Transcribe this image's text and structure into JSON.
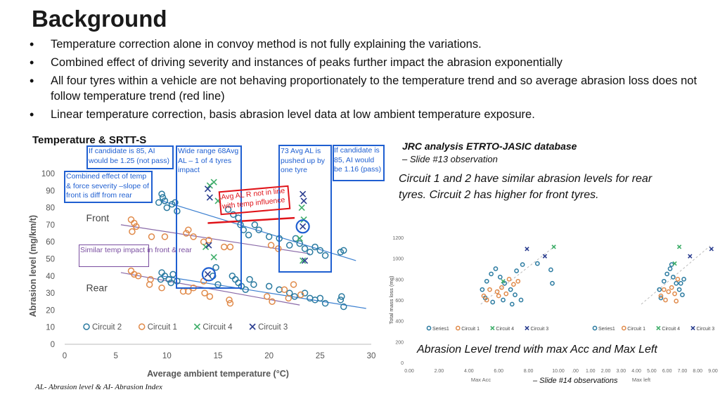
{
  "slide": {
    "title": "Background",
    "bullets": [
      "Temperature correction alone in convoy method is not fully explaining the variations.",
      "Combined effect of driving severity and instances of peaks further impact the abrasion exponentially",
      "All four tyres within a vehicle are not behaving proportionately to the temperature trend  and so average abrasion loss does not follow temperature trend (red line)",
      "Linear temperature correction, basis abrasion level data at low ambient temperature exposure."
    ],
    "section_title": "Temperature & SRTT-S",
    "jrc_title": "JRC analysis ETRTO-JASIC database",
    "jrc_sub": "– Slide #13 observation",
    "circuit_note": "Circuit 1 and 2 have similar abrasion levels for rear tyres. Circuit 2 has higher for front tyres.",
    "abrasion_trend": "Abrasion Level trend with max Acc and Max Left",
    "slide14": "– Slide #14 observations",
    "footnote": "AL- Abrasion level & AI- Abrasion Index"
  },
  "annotations": {
    "ai85_left": "If candidate is 85, AI would be 1.25 (not pass)",
    "combined": "Combined effect of temp & force severity –slope of front is diff from rear",
    "wide_range": "Wide range 68Avg AL – 1 of 4 tyres impact",
    "avg_al_73": "73 Avg AL is pushed up by one tyre",
    "ai85_right": "If candidate is 85, AI would be 1.16 (pass)",
    "avg_al_not_in_line": "Avg AL R not in line with temp influence",
    "similar_temp": "Similar temp impact in front & rear",
    "front_label": "Front",
    "rear_label": "Rear"
  },
  "colors": {
    "accent_blue": "#1f5fd1",
    "red": "#e0141a",
    "circuit2": "#2a7aa0",
    "circuit1": "#e08a4a",
    "circuit4": "#3fae6a",
    "circuit3": "#2a3d8f",
    "purple": "#7a4ea0"
  },
  "chart_data": [
    {
      "type": "scatter",
      "title": "",
      "xlabel": "Average ambient temperature (°C)",
      "ylabel": "Abrasion level (mg/km/t)",
      "xlim": [
        0,
        30
      ],
      "ylim": [
        0,
        100
      ],
      "xticks": [
        0,
        5,
        10,
        15,
        20,
        25,
        30
      ],
      "yticks": [
        0,
        10,
        20,
        30,
        40,
        50,
        60,
        70,
        80,
        90,
        100
      ],
      "grid": false,
      "legend": "bottom",
      "series": [
        {
          "name": "Circuit 2",
          "marker": "circle",
          "points": [
            [
              9.5,
              88
            ],
            [
              9.8,
              84
            ],
            [
              10,
              80
            ],
            [
              10.5,
              82
            ],
            [
              9.2,
              83
            ],
            [
              9.6,
              86
            ],
            [
              10.8,
              83
            ],
            [
              11,
              78
            ],
            [
              16,
              79
            ],
            [
              16.5,
              76
            ],
            [
              17,
              74
            ],
            [
              17.2,
              70
            ],
            [
              17.5,
              67
            ],
            [
              18,
              64
            ],
            [
              18.6,
              70
            ],
            [
              19,
              67
            ],
            [
              20,
              63
            ],
            [
              21,
              62
            ],
            [
              22,
              58
            ],
            [
              22.6,
              62
            ],
            [
              23,
              59
            ],
            [
              23.5,
              56
            ],
            [
              24,
              54
            ],
            [
              24.5,
              57
            ],
            [
              25,
              55
            ],
            [
              25.5,
              52
            ],
            [
              27,
              54
            ],
            [
              27.3,
              55
            ],
            [
              9.5,
              42
            ],
            [
              9.8,
              40
            ],
            [
              10.2,
              38
            ],
            [
              10.6,
              41
            ],
            [
              11,
              37
            ],
            [
              9.4,
              38
            ],
            [
              10.4,
              36
            ],
            [
              16.4,
              40
            ],
            [
              16.7,
              38
            ],
            [
              17,
              36
            ],
            [
              17.3,
              34
            ],
            [
              17.7,
              32
            ],
            [
              18.1,
              38
            ],
            [
              18.5,
              35
            ],
            [
              20,
              34
            ],
            [
              21,
              32
            ],
            [
              22,
              30
            ],
            [
              22.5,
              28
            ],
            [
              23.5,
              30
            ],
            [
              24,
              27
            ],
            [
              24.5,
              26
            ],
            [
              25,
              27
            ],
            [
              25.5,
              24
            ],
            [
              27,
              26
            ],
            [
              27.3,
              22
            ],
            [
              27.1,
              28
            ],
            [
              14.8,
              45
            ],
            [
              14.5,
              40
            ],
            [
              15,
              35
            ]
          ]
        },
        {
          "name": "Circuit 1",
          "marker": "circle",
          "points": [
            [
              6.5,
              73
            ],
            [
              6.8,
              71
            ],
            [
              7,
              69
            ],
            [
              6.6,
              66
            ],
            [
              8.5,
              63
            ],
            [
              9.8,
              63
            ],
            [
              11.9,
              65
            ],
            [
              12.1,
              67
            ],
            [
              12.6,
              63
            ],
            [
              13.6,
              60
            ],
            [
              14.1,
              61
            ],
            [
              15.6,
              57
            ],
            [
              16.2,
              57
            ],
            [
              20.2,
              58
            ],
            [
              20.9,
              56
            ],
            [
              6.5,
              43
            ],
            [
              6.8,
              41
            ],
            [
              7.2,
              40
            ],
            [
              8.4,
              38
            ],
            [
              8.3,
              35
            ],
            [
              9.5,
              33
            ],
            [
              11.6,
              31
            ],
            [
              12.1,
              31
            ],
            [
              12.6,
              33
            ],
            [
              13.7,
              30
            ],
            [
              14.2,
              28
            ],
            [
              16.1,
              26
            ],
            [
              16.2,
              24
            ],
            [
              19.8,
              28
            ],
            [
              20.3,
              25
            ],
            [
              21.5,
              32
            ],
            [
              22.4,
              35
            ],
            [
              21.9,
              27
            ],
            [
              23.1,
              29
            ],
            [
              13.6,
              37
            ]
          ]
        },
        {
          "name": "Circuit 4",
          "marker": "x",
          "points": [
            [
              14.2,
              93
            ],
            [
              14.6,
              95
            ],
            [
              15,
              84
            ],
            [
              13.8,
              57
            ],
            [
              14.6,
              51
            ],
            [
              23.2,
              80
            ],
            [
              23.4,
              73
            ],
            [
              23,
              62
            ],
            [
              23.3,
              49
            ]
          ]
        },
        {
          "name": "Circuit 3",
          "marker": "x",
          "points": [
            [
              14,
              91
            ],
            [
              14.2,
              86
            ],
            [
              14.1,
              58
            ],
            [
              14,
              41
            ],
            [
              23.3,
              88
            ],
            [
              23.4,
              84
            ],
            [
              23.3,
              69
            ],
            [
              23.5,
              49
            ]
          ]
        }
      ]
    },
    {
      "type": "scatter",
      "title": "",
      "xlabel": "Max Acc",
      "ylabel": "Total mass loss (mg)",
      "xlim": [
        0,
        10
      ],
      "ylim": [
        0,
        1200
      ],
      "xticks": [
        "0.00",
        "2.00",
        "4.00",
        "6.00",
        "8.00",
        "10.00"
      ],
      "yticks": [
        0,
        200,
        400,
        600,
        800,
        1000,
        1200
      ],
      "legend": "bottom",
      "series": [
        {
          "name": "Series1",
          "points": [
            [
              4.9,
              700
            ],
            [
              5.2,
              780
            ],
            [
              5.5,
              850
            ],
            [
              5.8,
              900
            ],
            [
              6.1,
              820
            ],
            [
              6.4,
              760
            ],
            [
              6.8,
              700
            ],
            [
              7.1,
              650
            ],
            [
              7.5,
              600
            ],
            [
              5.1,
              620
            ],
            [
              5.6,
              580
            ],
            [
              6.3,
              600
            ],
            [
              7.2,
              880
            ],
            [
              7.6,
              940
            ],
            [
              8.6,
              950
            ],
            [
              9.5,
              890
            ],
            [
              9.6,
              760
            ],
            [
              6.9,
              560
            ]
          ]
        },
        {
          "name": "Circuit 1",
          "points": [
            [
              5,
              640
            ],
            [
              5.4,
              700
            ],
            [
              5.9,
              680
            ],
            [
              6.2,
              720
            ],
            [
              6.5,
              660
            ],
            [
              6.7,
              800
            ],
            [
              7,
              750
            ],
            [
              7.3,
              780
            ],
            [
              5.2,
              600
            ],
            [
              6.0,
              640
            ]
          ]
        },
        {
          "name": "Circuit 4",
          "points": [
            [
              9.7,
              1110
            ],
            [
              6.3,
              780
            ]
          ]
        },
        {
          "name": "Circuit 3",
          "points": [
            [
              7.9,
              1090
            ],
            [
              9.1,
              1020
            ]
          ]
        }
      ]
    },
    {
      "type": "scatter",
      "title": "",
      "xlabel": "Max left",
      "ylabel": "",
      "xlim": [
        0,
        9
      ],
      "ylim": [
        0,
        1200
      ],
      "xticks": [
        ".00",
        "1.00",
        "2.00",
        "3.00",
        "4.00",
        "5.00",
        "6.00",
        "7.00",
        "8.00",
        "9.00"
      ],
      "legend": "bottom",
      "series": [
        {
          "name": "Series1",
          "points": [
            [
              5.5,
              700
            ],
            [
              5.8,
              780
            ],
            [
              6.0,
              850
            ],
            [
              6.2,
              900
            ],
            [
              6.4,
              820
            ],
            [
              6.6,
              760
            ],
            [
              6.8,
              700
            ],
            [
              7.0,
              650
            ],
            [
              5.6,
              620
            ],
            [
              6.9,
              760
            ],
            [
              7.1,
              800
            ],
            [
              6.3,
              940
            ]
          ]
        },
        {
          "name": "Circuit 1",
          "points": [
            [
              5.6,
              640
            ],
            [
              5.8,
              700
            ],
            [
              6.1,
              680
            ],
            [
              6.3,
              720
            ],
            [
              6.5,
              660
            ],
            [
              6.7,
              800
            ],
            [
              5.9,
              600
            ],
            [
              6.6,
              590
            ]
          ]
        },
        {
          "name": "Circuit 4",
          "points": [
            [
              6.8,
              1110
            ],
            [
              6.5,
              950
            ]
          ]
        },
        {
          "name": "Circuit 3",
          "points": [
            [
              7.5,
              1020
            ],
            [
              8.9,
              1090
            ]
          ]
        }
      ]
    }
  ]
}
